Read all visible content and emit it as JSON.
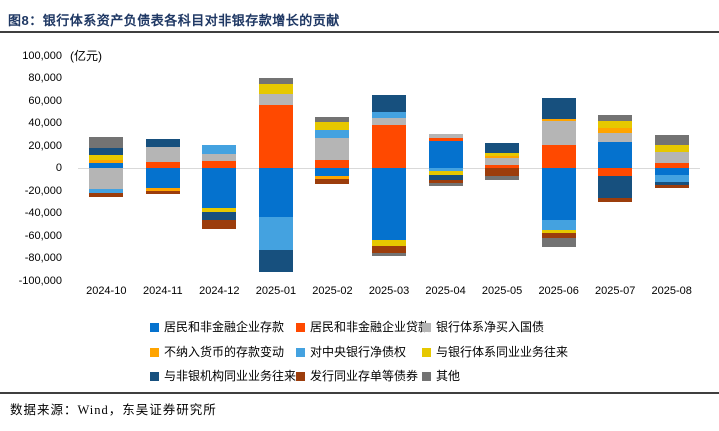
{
  "header": {
    "title": "图8：银行体系资产负债表各科目对非银存款增长的贡献"
  },
  "footer": {
    "source": "数据来源：Wind，东吴证券研究所"
  },
  "chart_data": {
    "type": "bar",
    "stacked": true,
    "title": "银行体系资产负债表各科目对非银存款增长的贡献",
    "unit_label": "(亿元)",
    "xlabel": "",
    "ylabel": "亿元",
    "ylim": [
      -100000,
      100000
    ],
    "ytick_step": 20000,
    "grid": "zero-line-only",
    "legend_position": "bottom",
    "categories": [
      "2024-10",
      "2024-11",
      "2024-12",
      "2025-01",
      "2025-02",
      "2025-03",
      "2025-04",
      "2025-05",
      "2025-06",
      "2025-07",
      "2025-08"
    ],
    "series": [
      {
        "name": "居民和非金融企业存款",
        "color": "#0572CE",
        "values": [
          4500,
          -18000,
          -35500,
          -43500,
          -7500,
          -64000,
          24000,
          0,
          -46500,
          23000,
          -6500
        ]
      },
      {
        "name": "居民和非金融企业贷款",
        "color": "#FF4900",
        "values": [
          0,
          5000,
          6000,
          56000,
          7500,
          38000,
          3000,
          2500,
          20500,
          -7500,
          4500
        ]
      },
      {
        "name": "银行体系净买入国债",
        "color": "#B5B5B5",
        "values": [
          -18500,
          14000,
          6800,
          9500,
          19000,
          6500,
          3000,
          6000,
          21500,
          8000,
          10000
        ]
      },
      {
        "name": "不纳入货币的存款变动",
        "color": "#FFA400",
        "values": [
          2500,
          -2500,
          0,
          0,
          -2500,
          0,
          0,
          2500,
          1500,
          4500,
          0
        ]
      },
      {
        "name": "对中央银行净债权",
        "color": "#44A2E0",
        "values": [
          -4000,
          0,
          7500,
          -29000,
          7500,
          5500,
          -3000,
          0,
          -9000,
          0,
          -6000
        ]
      },
      {
        "name": "与银行体系同业业务往来",
        "color": "#E6C800",
        "values": [
          5000,
          0,
          -3600,
          9000,
          7000,
          -5000,
          -3500,
          2500,
          -2500,
          6000,
          6000
        ]
      },
      {
        "name": "与非银机构同业业务往来",
        "color": "#17507E",
        "values": [
          5500,
          6500,
          -7400,
          -19500,
          0,
          15000,
          -4000,
          9000,
          18500,
          -19500,
          -3000
        ]
      },
      {
        "name": "发行同业存单等债券",
        "color": "#9C3D0C",
        "values": [
          -3000,
          -2500,
          -7700,
          0,
          -4500,
          -6500,
          -2500,
          -7500,
          -4500,
          -3500,
          -2000
        ]
      },
      {
        "name": "其他",
        "color": "#737373",
        "values": [
          10000,
          0,
          0,
          5500,
          4000,
          -2500,
          -3000,
          -3000,
          -7500,
          5500,
          9000
        ]
      }
    ]
  }
}
